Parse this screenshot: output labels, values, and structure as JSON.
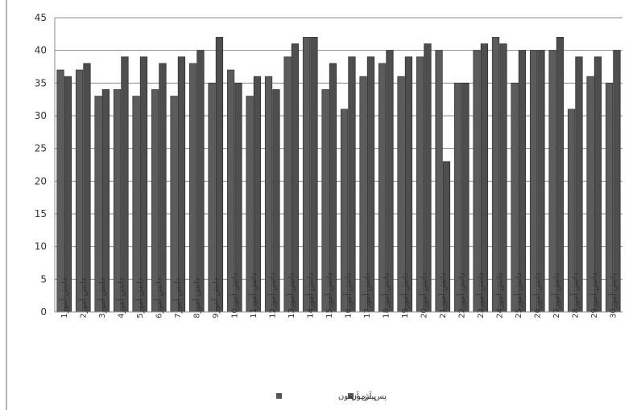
{
  "chart_data": {
    "type": "bar",
    "title": "",
    "xlabel": "",
    "ylabel": "",
    "ylim": [
      0,
      45
    ],
    "yticks": [
      0,
      5,
      10,
      15,
      20,
      25,
      30,
      35,
      40,
      45
    ],
    "grid": true,
    "legend_position": "bottom",
    "categories": [
      "دانش آموز1",
      "دانش آموز2",
      "دانش آموز3",
      "دانش آموز4",
      "دانش آموز5",
      "دانش آموز6",
      "دانش آموز7",
      "دانش آموز8",
      "دانش آموز9",
      "دانش آموز10",
      "دانش آموز11",
      "دانش آموز12",
      "دانش آموز13",
      "دانش آموز14",
      "دانش آموز15",
      "دانش آموز16",
      "دانش آموز17",
      "دانش آموز18",
      "دانش آموز19",
      "دانش آموز20",
      "دانش آموز21",
      "دانش آموز22",
      "دانش آموز23",
      "دانش آموز24",
      "دانش آموز25",
      "دانش آموز26",
      "دانش آموز27",
      "دانش آموز28",
      "دانش آموز29",
      "دانش آموز30"
    ],
    "series": [
      {
        "name": "پیش آزمون",
        "color": "#5a5a5a",
        "values": [
          37,
          37,
          33,
          34,
          33,
          34,
          33,
          38,
          35,
          37,
          33,
          36,
          39,
          42,
          34,
          31,
          36,
          38,
          36,
          39,
          40,
          35,
          40,
          42,
          35,
          40,
          40,
          31,
          36,
          35
        ]
      },
      {
        "name": "پس آزمون",
        "color": "#555555",
        "values": [
          36,
          38,
          34,
          39,
          39,
          38,
          39,
          40,
          42,
          35,
          36,
          34,
          41,
          42,
          38,
          39,
          39,
          40,
          39,
          41,
          23,
          35,
          41,
          41,
          40,
          40,
          42,
          39,
          39,
          40
        ]
      }
    ]
  }
}
